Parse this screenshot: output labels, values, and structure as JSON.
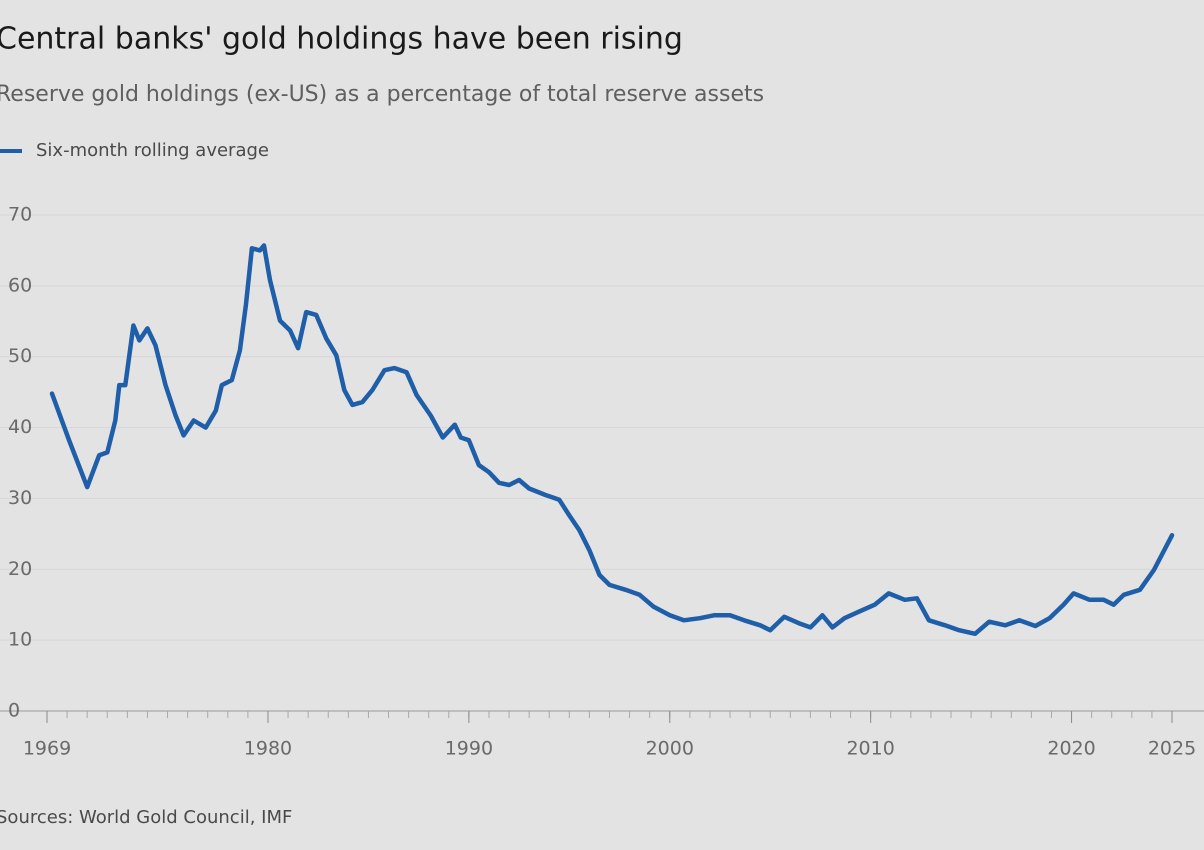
{
  "chart_data": {
    "type": "line",
    "title": "Central banks' gold holdings have been rising",
    "subtitle": "Reserve gold holdings (ex-US) as a percentage of total reserve assets",
    "source": "Sources: World Gold Council, IMF",
    "x": [
      1969.25,
      1970.1,
      1971.0,
      1971.6,
      1972.0,
      1972.4,
      1972.6,
      1972.9,
      1973.3,
      1973.6,
      1974.0,
      1974.4,
      1974.9,
      1975.4,
      1975.8,
      1976.3,
      1976.9,
      1977.4,
      1977.7,
      1978.2,
      1978.6,
      1978.9,
      1979.2,
      1979.6,
      1979.8,
      1980.1,
      1980.6,
      1981.1,
      1981.5,
      1981.9,
      1982.4,
      1982.9,
      1983.4,
      1983.8,
      1984.2,
      1984.7,
      1985.2,
      1985.8,
      1986.3,
      1986.9,
      1987.4,
      1988.1,
      1988.7,
      1989.3,
      1989.6,
      1990.0,
      1990.5,
      1991.0,
      1991.5,
      1992.0,
      1992.5,
      1993.0,
      1993.8,
      1994.5,
      1995.0,
      1995.5,
      1996.0,
      1996.5,
      1997.0,
      1997.8,
      1998.5,
      1999.2,
      2000.0,
      2000.7,
      2001.5,
      2002.2,
      2003.0,
      2003.7,
      2004.5,
      2005.0,
      2005.7,
      2006.5,
      2007.0,
      2007.6,
      2008.1,
      2008.7,
      2009.4,
      2010.2,
      2010.9,
      2011.7,
      2012.3,
      2012.9,
      2013.7,
      2014.4,
      2015.2,
      2015.9,
      2016.7,
      2017.4,
      2018.2,
      2018.9,
      2019.6,
      2020.1,
      2020.9,
      2021.6,
      2022.1,
      2022.6,
      2023.4,
      2024.1,
      2025.0
    ],
    "series": [
      {
        "name": "Six-month rolling average",
        "color": "#1f5ea8",
        "values": [
          44.8,
          38.2,
          31.6,
          36.1,
          36.5,
          41,
          46,
          46,
          54.4,
          52.3,
          54,
          51.6,
          46,
          41.7,
          38.9,
          41,
          40,
          42.4,
          46,
          46.7,
          50.9,
          57.3,
          65.3,
          65,
          65.7,
          60.8,
          55.1,
          53.7,
          51.2,
          56.3,
          55.9,
          52.6,
          50.2,
          45.3,
          43.2,
          43.6,
          45.3,
          48.1,
          48.4,
          47.8,
          44.6,
          41.7,
          38.6,
          40.4,
          38.6,
          38.2,
          34.7,
          33.7,
          32.2,
          31.9,
          32.6,
          31.4,
          30.5,
          29.8,
          27.6,
          25.5,
          22.7,
          19.2,
          17.8,
          17.1,
          16.4,
          14.7,
          13.5,
          12.8,
          13.1,
          13.5,
          13.5,
          12.8,
          12.1,
          11.4,
          13.3,
          12.3,
          11.8,
          13.5,
          11.8,
          13.1,
          14.0,
          15.0,
          16.6,
          15.7,
          15.9,
          12.8,
          12.1,
          11.4,
          10.9,
          12.6,
          12.1,
          12.8,
          12.0,
          13.1,
          15.0,
          16.6,
          15.7,
          15.7,
          15.0,
          16.4,
          17.1,
          19.9,
          24.8
        ]
      }
    ],
    "xlim": [
      1969,
      2025
    ],
    "xticks": [
      1969,
      1980,
      1990,
      2000,
      2010,
      2020,
      2025
    ],
    "ylim": [
      0,
      70
    ],
    "yticks": [
      0,
      10,
      20,
      30,
      40,
      50,
      60,
      70
    ],
    "grid": true
  }
}
